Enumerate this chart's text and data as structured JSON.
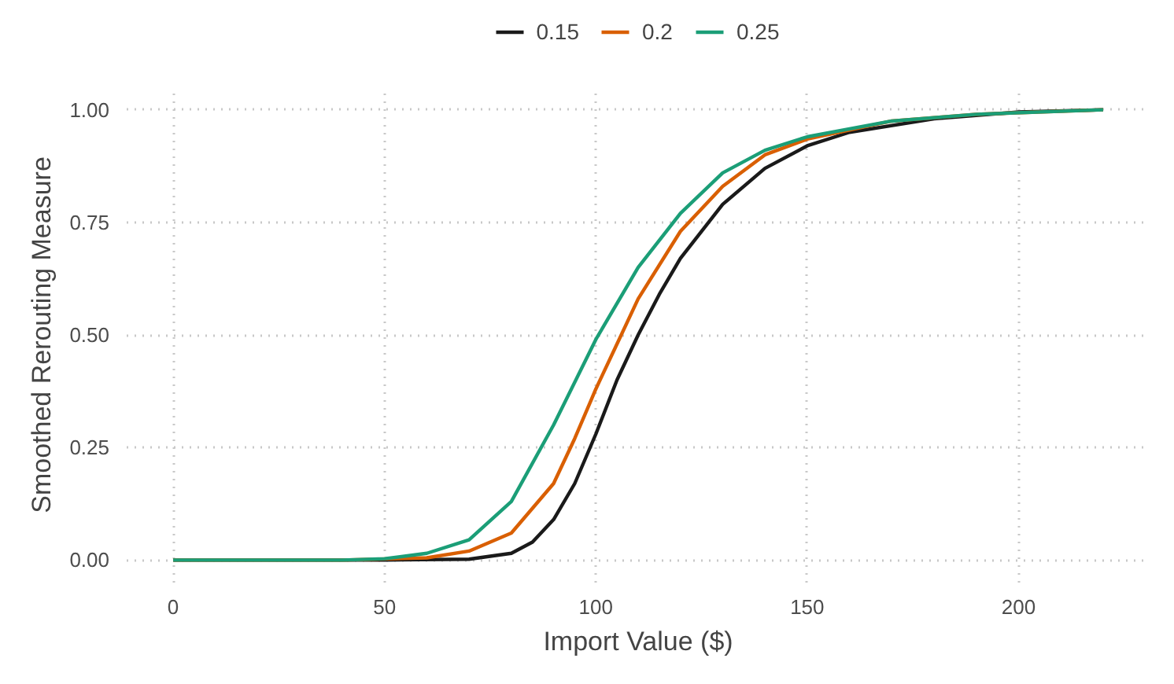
{
  "chart_data": {
    "type": "line",
    "xlabel": "Import Value ($)",
    "ylabel": "Smoothed Rerouting Measure",
    "xlim": [
      -11,
      231
    ],
    "ylim": [
      -0.05,
      1.05
    ],
    "xticks": [
      0,
      50,
      100,
      150,
      200
    ],
    "yticks": [
      {
        "value": 0,
        "label": "0.00"
      },
      {
        "value": 0.25,
        "label": "0.25"
      },
      {
        "value": 0.5,
        "label": "0.50"
      },
      {
        "value": 0.75,
        "label": "0.75"
      },
      {
        "value": 1,
        "label": "1.00"
      }
    ],
    "grid": true,
    "legend": "top",
    "line_style": "solid",
    "marker": "none",
    "series": [
      {
        "name": "0.15",
        "color": "#1a1a1a",
        "x": [
          0,
          50,
          70,
          80,
          85,
          90,
          95,
          100,
          105,
          110,
          115,
          120,
          130,
          140,
          150,
          160,
          180,
          200,
          220
        ],
        "values": [
          0,
          0,
          0.002,
          0.015,
          0.04,
          0.09,
          0.17,
          0.28,
          0.4,
          0.5,
          0.59,
          0.67,
          0.79,
          0.87,
          0.92,
          0.95,
          0.98,
          0.995,
          1
        ]
      },
      {
        "name": "0.2",
        "color": "#d95f02",
        "x": [
          0,
          40,
          60,
          70,
          80,
          90,
          95,
          100,
          105,
          110,
          120,
          130,
          140,
          150,
          170,
          190,
          220
        ],
        "values": [
          0,
          0,
          0.005,
          0.02,
          0.06,
          0.17,
          0.27,
          0.38,
          0.48,
          0.58,
          0.73,
          0.83,
          0.9,
          0.935,
          0.975,
          0.99,
          1
        ]
      },
      {
        "name": "0.25",
        "color": "#1b9e77",
        "x": [
          0,
          40,
          50,
          60,
          70,
          80,
          90,
          100,
          110,
          120,
          130,
          140,
          150,
          170,
          190,
          220
        ],
        "values": [
          0,
          0,
          0.003,
          0.015,
          0.045,
          0.13,
          0.3,
          0.49,
          0.65,
          0.77,
          0.86,
          0.91,
          0.94,
          0.975,
          0.99,
          1
        ]
      }
    ]
  }
}
